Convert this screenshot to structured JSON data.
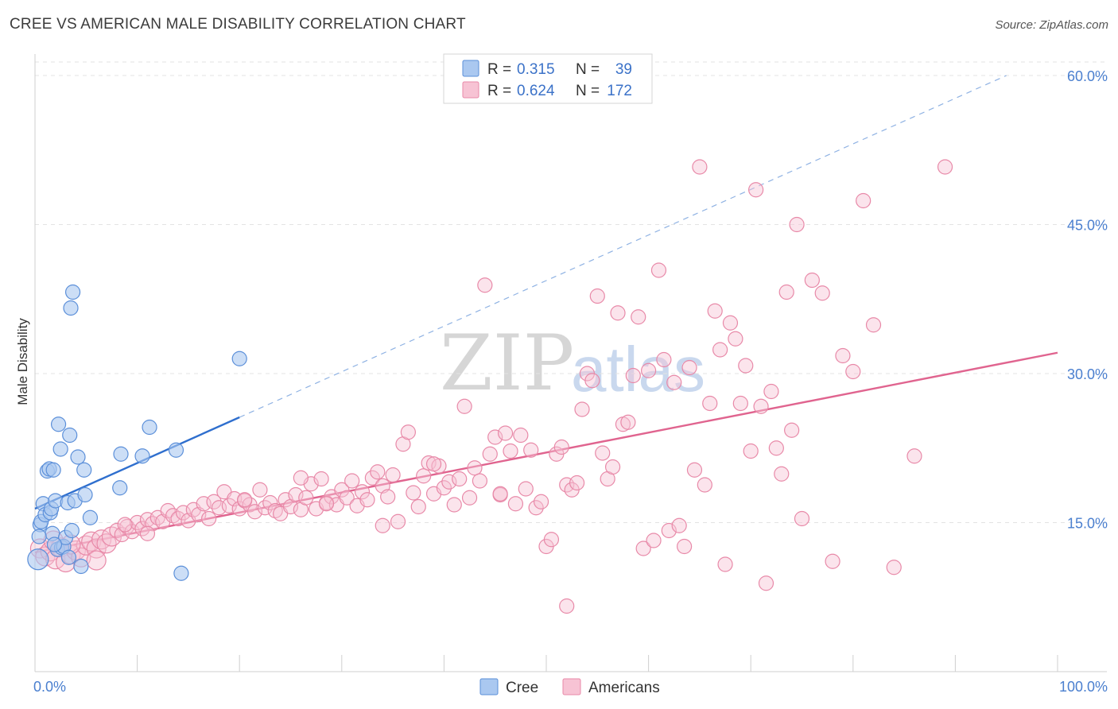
{
  "header": {
    "title": "CREE VS AMERICAN MALE DISABILITY CORRELATION CHART",
    "source": "Source: ZipAtlas.com"
  },
  "watermark": {
    "zip": "ZIP",
    "atlas": "atlas"
  },
  "chart_data": {
    "type": "scatter",
    "title": "CREE VS AMERICAN MALE DISABILITY CORRELATION CHART",
    "ylabel": "Male Disability",
    "xlabel": "",
    "xlim": [
      0,
      100
    ],
    "ylim": [
      0,
      62
    ],
    "x_tick_labels": [
      {
        "value": 0,
        "label": "0.0%"
      },
      {
        "value": 100,
        "label": "100.0%"
      }
    ],
    "y_tick_labels": [
      {
        "value": 15,
        "label": "15.0%"
      },
      {
        "value": 30,
        "label": "30.0%"
      },
      {
        "value": 45,
        "label": "45.0%"
      },
      {
        "value": 60,
        "label": "60.0%"
      }
    ],
    "grid": true,
    "legend_position": "top-center",
    "legend": {
      "r_label": "R =",
      "n_label": "N =",
      "entries": [
        {
          "series": "Cree",
          "r": "0.315",
          "n": "39"
        },
        {
          "series": "Americans",
          "r": "0.624",
          "n": "172"
        }
      ]
    },
    "colors": {
      "cree_fill": "#aac8f0",
      "cree_stroke": "#5b8fd9",
      "cree_line": "#2f6fce",
      "americans_fill": "#f7c3d4",
      "americans_stroke": "#e889a8",
      "americans_line": "#e0648f",
      "tick_text": "#4a7fcf"
    },
    "series": [
      {
        "name": "Cree",
        "trend": {
          "x0": 0,
          "y0": 16.4,
          "x1": 20,
          "y1": 25.6,
          "dash_x_end": 95,
          "dash_y_end": 60
        },
        "points": [
          [
            0.3,
            11.3
          ],
          [
            0.5,
            14.8
          ],
          [
            0.6,
            15.1
          ],
          [
            0.8,
            16.9
          ],
          [
            1.0,
            15.8
          ],
          [
            1.2,
            20.2
          ],
          [
            1.4,
            20.4
          ],
          [
            1.5,
            16.0
          ],
          [
            1.6,
            16.4
          ],
          [
            1.7,
            13.9
          ],
          [
            1.8,
            20.3
          ],
          [
            2.0,
            17.2
          ],
          [
            2.2,
            12.3
          ],
          [
            2.3,
            24.9
          ],
          [
            2.5,
            22.4
          ],
          [
            2.6,
            12.5
          ],
          [
            2.8,
            12.6
          ],
          [
            3.0,
            13.5
          ],
          [
            3.2,
            17.0
          ],
          [
            3.3,
            11.5
          ],
          [
            3.4,
            23.8
          ],
          [
            3.5,
            36.6
          ],
          [
            3.6,
            14.2
          ],
          [
            3.7,
            38.2
          ],
          [
            3.9,
            17.2
          ],
          [
            4.2,
            21.6
          ],
          [
            4.5,
            10.6
          ],
          [
            4.8,
            20.3
          ],
          [
            4.9,
            17.8
          ],
          [
            5.4,
            15.5
          ],
          [
            8.3,
            18.5
          ],
          [
            8.4,
            21.9
          ],
          [
            10.5,
            21.7
          ],
          [
            11.2,
            24.6
          ],
          [
            13.8,
            22.3
          ],
          [
            14.3,
            9.9
          ],
          [
            20.0,
            31.5
          ],
          [
            0.4,
            13.6
          ],
          [
            1.9,
            12.8
          ]
        ]
      },
      {
        "name": "Americans",
        "trend": {
          "x0": 0,
          "y0": 12.0,
          "x1": 100,
          "y1": 32.1
        },
        "points": [
          [
            0.5,
            12.4
          ],
          [
            1.0,
            11.6
          ],
          [
            1.5,
            12.1
          ],
          [
            2.0,
            11.3
          ],
          [
            2.5,
            12.5
          ],
          [
            3.0,
            11.0
          ],
          [
            3.5,
            11.8
          ],
          [
            4.0,
            12.2
          ],
          [
            4.5,
            11.5
          ],
          [
            5.0,
            12.7
          ],
          [
            5.5,
            13.1
          ],
          [
            6.0,
            12.4
          ],
          [
            6.5,
            13.3
          ],
          [
            7.0,
            12.9
          ],
          [
            7.5,
            13.6
          ],
          [
            8.0,
            14.2
          ],
          [
            8.5,
            13.8
          ],
          [
            9.0,
            14.6
          ],
          [
            9.5,
            14.1
          ],
          [
            10.0,
            15.0
          ],
          [
            10.5,
            14.4
          ],
          [
            11.0,
            15.3
          ],
          [
            11.5,
            14.9
          ],
          [
            12.0,
            15.5
          ],
          [
            12.5,
            15.1
          ],
          [
            13.0,
            16.2
          ],
          [
            13.5,
            15.7
          ],
          [
            14.0,
            15.4
          ],
          [
            14.5,
            16.0
          ],
          [
            15.0,
            15.2
          ],
          [
            15.5,
            16.3
          ],
          [
            16.0,
            15.8
          ],
          [
            16.5,
            16.9
          ],
          [
            17.0,
            15.4
          ],
          [
            17.5,
            17.1
          ],
          [
            18.0,
            16.5
          ],
          [
            18.5,
            18.1
          ],
          [
            19.0,
            16.7
          ],
          [
            19.5,
            17.4
          ],
          [
            20.0,
            16.4
          ],
          [
            20.5,
            17.2
          ],
          [
            21.0,
            16.8
          ],
          [
            21.5,
            16.1
          ],
          [
            22.0,
            18.3
          ],
          [
            22.5,
            16.5
          ],
          [
            23.0,
            17.0
          ],
          [
            23.5,
            16.2
          ],
          [
            24.0,
            15.9
          ],
          [
            24.5,
            17.3
          ],
          [
            25.0,
            16.6
          ],
          [
            25.5,
            17.8
          ],
          [
            26.0,
            16.3
          ],
          [
            26.5,
            17.5
          ],
          [
            27.0,
            18.9
          ],
          [
            27.5,
            16.4
          ],
          [
            28.0,
            19.4
          ],
          [
            28.5,
            17.0
          ],
          [
            29.0,
            17.6
          ],
          [
            29.5,
            16.8
          ],
          [
            30.0,
            18.3
          ],
          [
            30.5,
            17.5
          ],
          [
            31.0,
            19.2
          ],
          [
            31.5,
            16.7
          ],
          [
            32.0,
            18.1
          ],
          [
            32.5,
            17.3
          ],
          [
            33.0,
            19.5
          ],
          [
            33.5,
            20.1
          ],
          [
            34.0,
            18.7
          ],
          [
            34.5,
            17.6
          ],
          [
            35.0,
            19.8
          ],
          [
            35.5,
            15.1
          ],
          [
            36.0,
            22.9
          ],
          [
            36.5,
            24.1
          ],
          [
            37.0,
            18.0
          ],
          [
            37.5,
            16.6
          ],
          [
            38.0,
            19.7
          ],
          [
            38.5,
            21.0
          ],
          [
            39.0,
            17.9
          ],
          [
            39.5,
            20.7
          ],
          [
            40.0,
            18.5
          ],
          [
            40.5,
            19.1
          ],
          [
            41.0,
            16.8
          ],
          [
            41.5,
            19.4
          ],
          [
            42.0,
            26.7
          ],
          [
            42.5,
            17.5
          ],
          [
            43.0,
            20.5
          ],
          [
            43.5,
            19.2
          ],
          [
            44.0,
            38.9
          ],
          [
            44.5,
            21.9
          ],
          [
            45.0,
            23.6
          ],
          [
            45.5,
            17.8
          ],
          [
            46.0,
            24.0
          ],
          [
            46.5,
            22.2
          ],
          [
            47.0,
            16.9
          ],
          [
            47.5,
            23.8
          ],
          [
            48.0,
            18.4
          ],
          [
            48.5,
            22.3
          ],
          [
            49.0,
            16.5
          ],
          [
            49.5,
            17.1
          ],
          [
            50.0,
            12.6
          ],
          [
            50.5,
            13.3
          ],
          [
            51.0,
            21.9
          ],
          [
            51.5,
            22.6
          ],
          [
            52.0,
            18.8
          ],
          [
            52.5,
            18.3
          ],
          [
            53.0,
            19.0
          ],
          [
            53.5,
            26.4
          ],
          [
            54.0,
            30.0
          ],
          [
            54.5,
            29.3
          ],
          [
            55.0,
            37.8
          ],
          [
            55.5,
            22.0
          ],
          [
            56.0,
            19.4
          ],
          [
            56.5,
            20.6
          ],
          [
            57.0,
            36.1
          ],
          [
            57.5,
            24.9
          ],
          [
            58.0,
            25.1
          ],
          [
            58.5,
            29.8
          ],
          [
            59.0,
            35.7
          ],
          [
            59.5,
            12.4
          ],
          [
            60.0,
            30.3
          ],
          [
            60.5,
            13.2
          ],
          [
            61.0,
            40.4
          ],
          [
            61.5,
            31.4
          ],
          [
            62.0,
            14.2
          ],
          [
            62.5,
            29.1
          ],
          [
            63.0,
            14.7
          ],
          [
            63.5,
            12.6
          ],
          [
            64.0,
            30.6
          ],
          [
            64.5,
            20.3
          ],
          [
            65.0,
            50.8
          ],
          [
            65.5,
            18.8
          ],
          [
            66.0,
            27.0
          ],
          [
            66.5,
            36.3
          ],
          [
            67.0,
            32.4
          ],
          [
            67.5,
            10.8
          ],
          [
            68.0,
            35.1
          ],
          [
            68.5,
            33.5
          ],
          [
            69.0,
            27.0
          ],
          [
            69.5,
            30.8
          ],
          [
            70.0,
            22.2
          ],
          [
            70.5,
            48.5
          ],
          [
            71.0,
            26.7
          ],
          [
            71.5,
            8.9
          ],
          [
            72.0,
            28.2
          ],
          [
            72.5,
            22.5
          ],
          [
            73.0,
            19.9
          ],
          [
            73.5,
            38.2
          ],
          [
            74.0,
            24.3
          ],
          [
            74.5,
            45.0
          ],
          [
            75.0,
            15.4
          ],
          [
            76.0,
            39.4
          ],
          [
            77.0,
            38.1
          ],
          [
            78.0,
            11.1
          ],
          [
            79.0,
            31.8
          ],
          [
            80.0,
            30.2
          ],
          [
            81.0,
            47.4
          ],
          [
            82.0,
            34.9
          ],
          [
            84.0,
            10.5
          ],
          [
            86.0,
            21.7
          ],
          [
            89.0,
            50.8
          ],
          [
            52.0,
            6.6
          ],
          [
            39.0,
            20.9
          ],
          [
            34.0,
            14.7
          ],
          [
            26.0,
            19.5
          ],
          [
            20.5,
            17.3
          ],
          [
            11.0,
            13.9
          ],
          [
            6.0,
            11.2
          ],
          [
            3.5,
            12.8
          ],
          [
            1.8,
            13.2
          ],
          [
            8.8,
            14.8
          ],
          [
            28.5,
            16.9
          ],
          [
            45.5,
            17.9
          ]
        ]
      }
    ]
  },
  "bottom_legend": {
    "items": [
      "Cree",
      "Americans"
    ]
  }
}
